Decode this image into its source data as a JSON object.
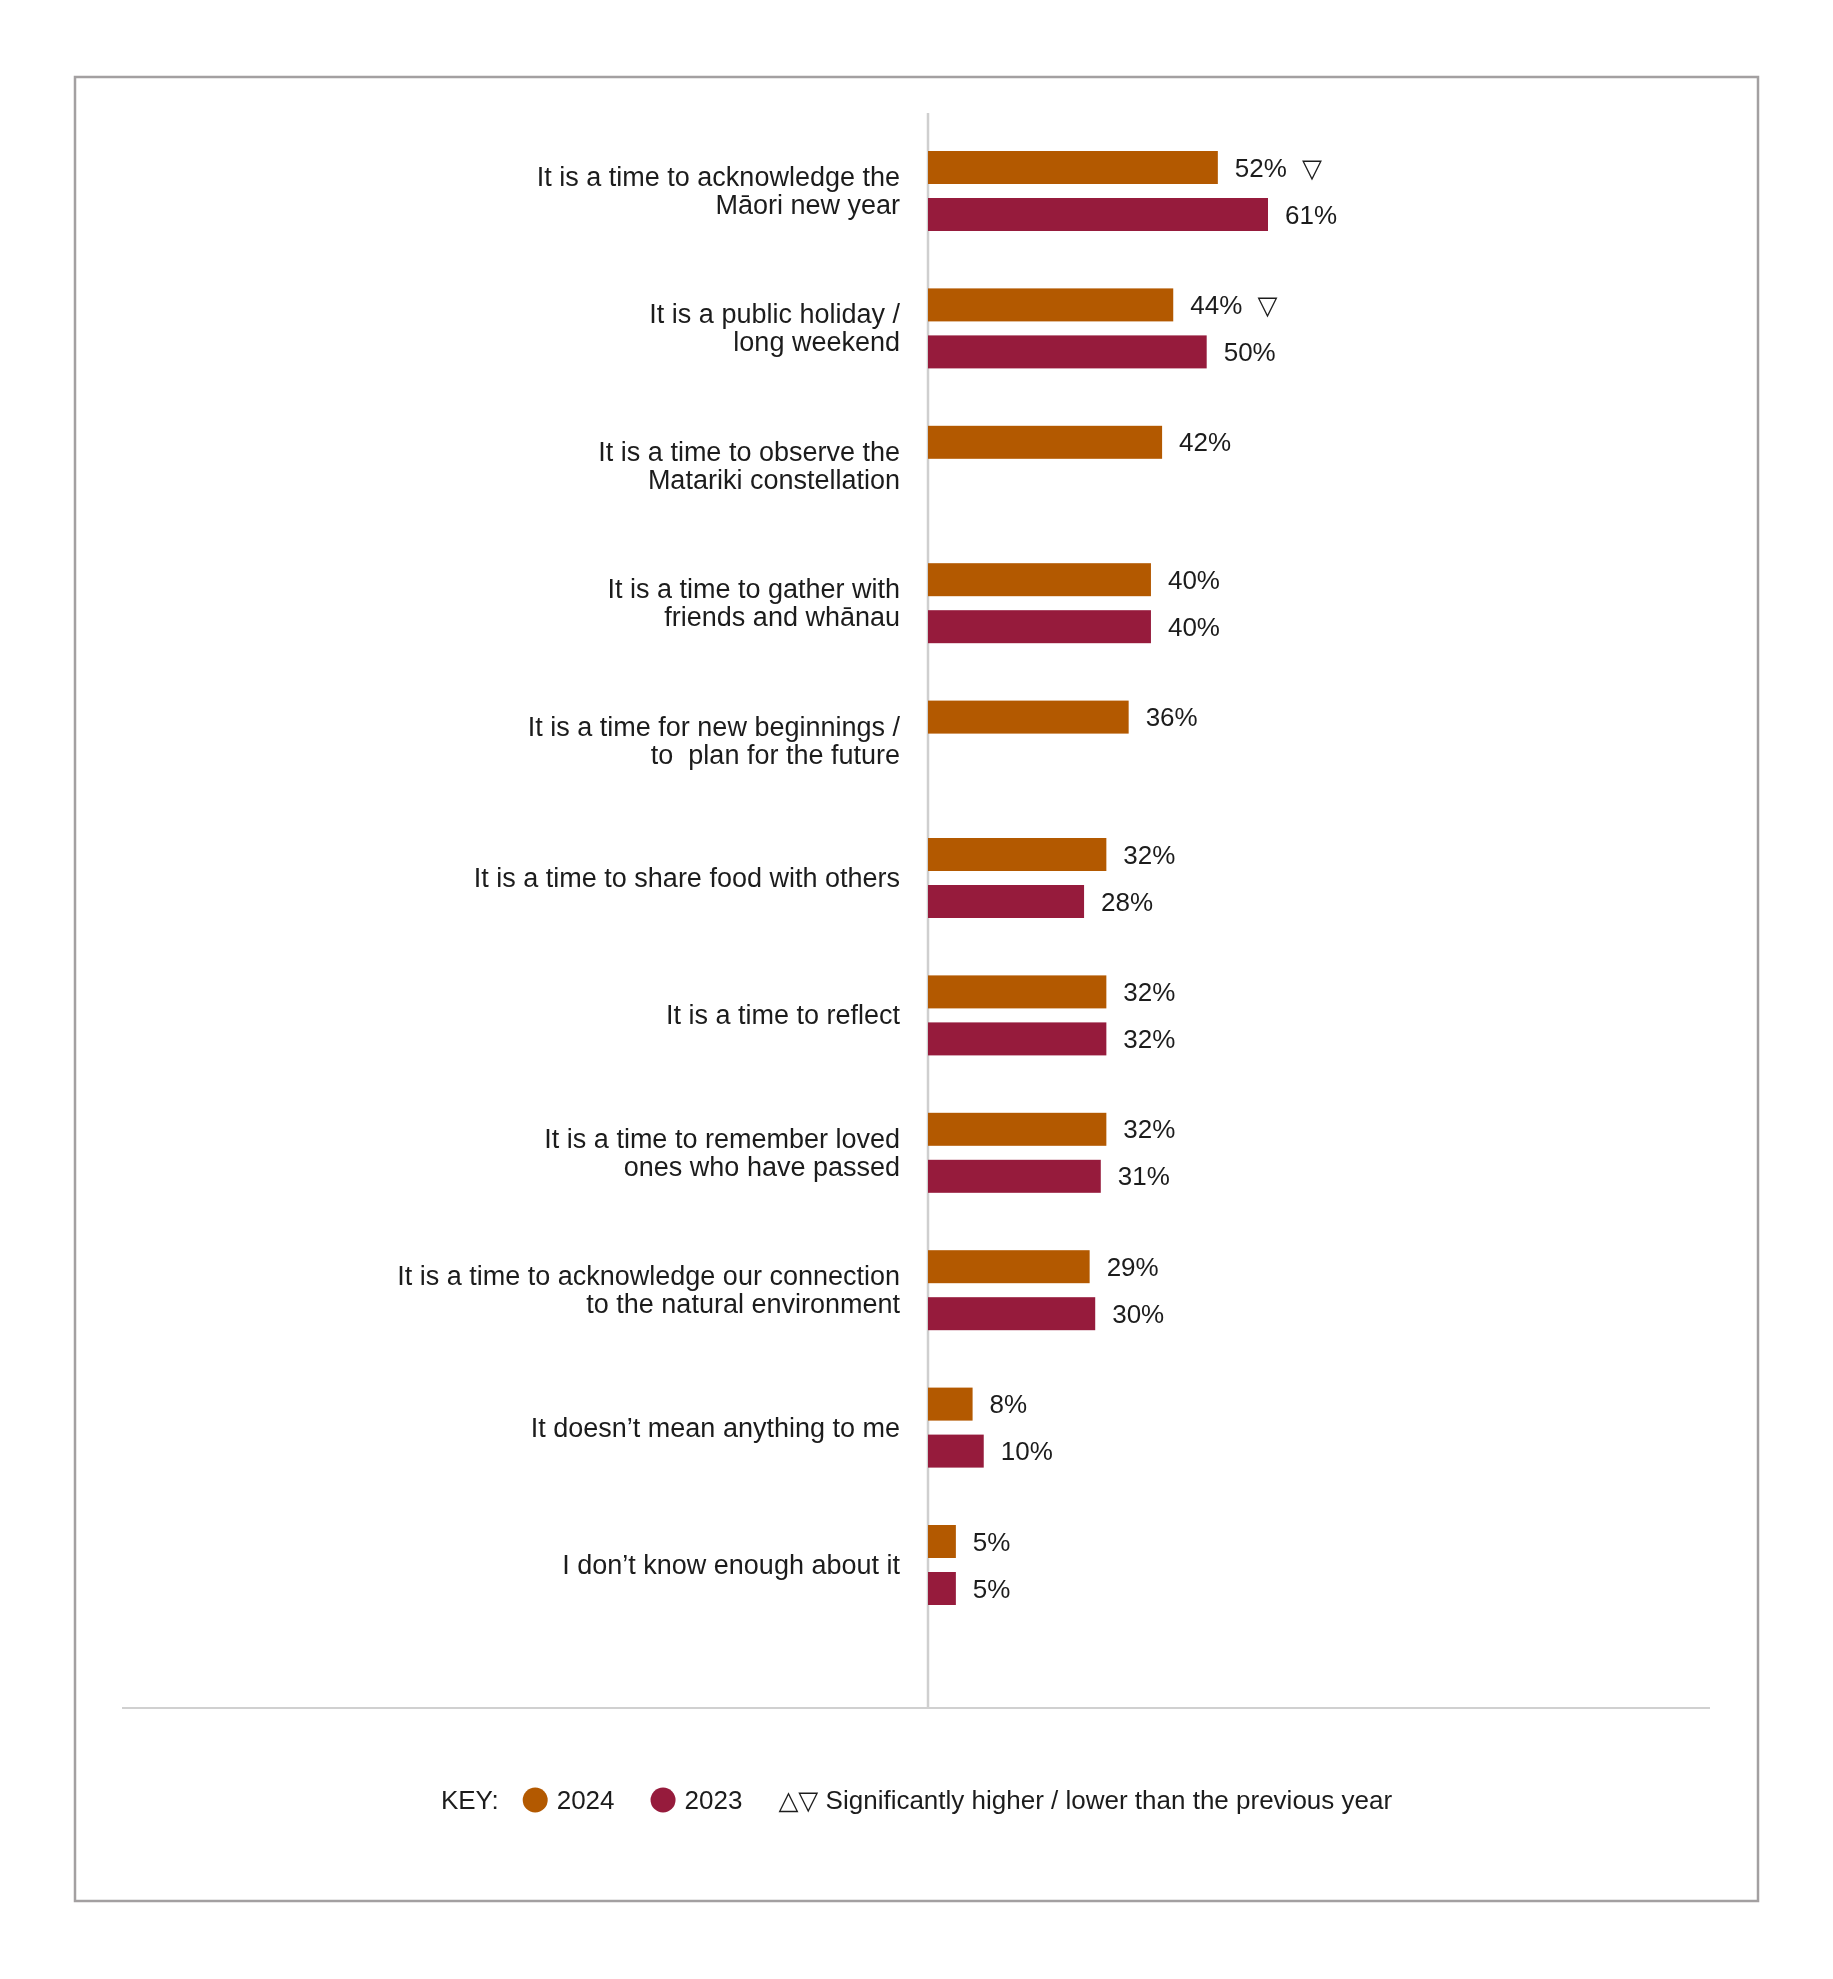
{
  "chart_data": {
    "type": "bar",
    "orientation": "horizontal",
    "categories": [
      "It is a time to acknowledge the\nMāori new year",
      "It is a public holiday /\nlong weekend",
      "It is a time to observe the\nMatariki constellation",
      "It is a time to gather with\nfriends and whānau",
      "It is a time for new beginnings /\nto  plan for the future",
      "It is a time to share food with others",
      "It is a time to reflect",
      "It is a time to remember loved\nones who have passed",
      "It is a time to acknowledge our connection\nto the natural environment",
      "It doesn’t mean anything to me",
      "I don’t know enough about it"
    ],
    "series": [
      {
        "name": "2024",
        "color": "#b35900",
        "values": [
          52,
          44,
          42,
          40,
          36,
          32,
          32,
          32,
          29,
          8,
          5
        ],
        "value_labels": [
          "52% ▽",
          "44% ▽",
          "42%",
          "40%",
          "36%",
          "32%",
          "32%",
          "32%",
          "29%",
          "8%",
          "5%"
        ]
      },
      {
        "name": "2023",
        "color": "#961b3c",
        "values": [
          61,
          50,
          null,
          40,
          null,
          28,
          32,
          31,
          30,
          10,
          5
        ],
        "value_labels": [
          "61%",
          "50%",
          null,
          "40%",
          null,
          "28%",
          "32%",
          "31%",
          "30%",
          "10%",
          "5%"
        ]
      }
    ],
    "legend": "bottom",
    "legend_title": "KEY:",
    "annotations": [
      "△▽ Significantly higher / lower than the previous year"
    ]
  }
}
